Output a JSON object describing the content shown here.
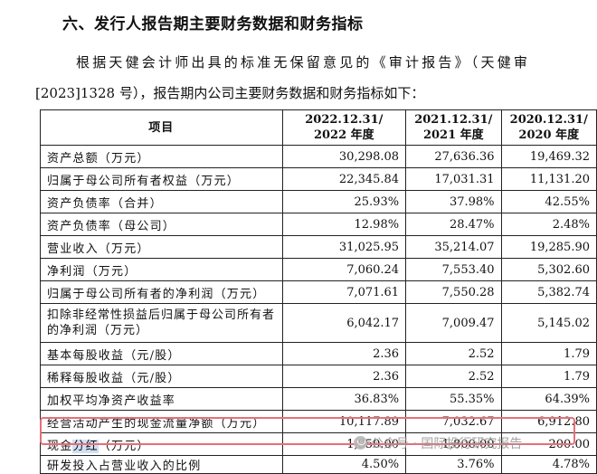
{
  "section_title": "六、发行人报告期主要财务数据和财务指标",
  "intro_line1": "根据天健会计师出具的标准无保留意见的《审计报告》（天健审",
  "intro_line2": "[2023]1328 号），报告期内公司主要财务数据和财务指标如下：",
  "table": {
    "headers": [
      {
        "line1": "项目",
        "line2": ""
      },
      {
        "line1": "2022.12.31/",
        "line2": "2022 年度"
      },
      {
        "line1": "2021.12.31/",
        "line2": "2021 年度"
      },
      {
        "line1": "2020.12.31/",
        "line2": "2020 年度"
      }
    ],
    "rows": [
      {
        "label": "资产总额（万元）",
        "values": [
          "30,298.08",
          "27,636.36",
          "19,469.32"
        ]
      },
      {
        "label": "归属于母公司所有者权益（万元）",
        "values": [
          "22,345.84",
          "17,031.31",
          "11,131.20"
        ]
      },
      {
        "label": "资产负债率（合并）",
        "values": [
          "25.93%",
          "37.98%",
          "42.55%"
        ]
      },
      {
        "label": "资产负债率（母公司）",
        "values": [
          "12.98%",
          "28.47%",
          "2.48%"
        ]
      },
      {
        "label": "营业收入（万元）",
        "values": [
          "31,025.95",
          "35,214.07",
          "19,285.90"
        ]
      },
      {
        "label": "净利润（万元）",
        "values": [
          "7,060.24",
          "7,553.40",
          "5,302.60"
        ]
      },
      {
        "label": "归属于母公司所有者的净利润（万元）",
        "values": [
          "7,071.61",
          "7,550.28",
          "5,382.74"
        ]
      },
      {
        "label": "扣除非经常性损益后归属于母公司所有者的净利润（万元）",
        "values": [
          "6,042.17",
          "7,009.47",
          "5,145.02"
        ]
      },
      {
        "label": "基本每股收益（元/股）",
        "values": [
          "2.36",
          "2.52",
          "1.79"
        ]
      },
      {
        "label": "稀释每股收益（元/股）",
        "values": [
          "2.36",
          "2.52",
          "1.79"
        ]
      },
      {
        "label": "加权平均净资产收益率",
        "values": [
          "36.83%",
          "55.35%",
          "64.39%"
        ]
      },
      {
        "label": "经营活动产生的现金流量净额（万元）",
        "values": [
          "10,117.89",
          "7,032.67",
          "6,912.80"
        ]
      },
      {
        "label_parts": [
          "现金",
          "分红",
          "（万元）"
        ],
        "values": [
          "1,950.00",
          "1,800.00",
          "200.00"
        ]
      },
      {
        "label": "研发投入占营业收入的比例",
        "values": [
          "4.50%",
          "3.76%",
          "4.78%"
        ]
      }
    ]
  },
  "colors": {
    "highlight_box": "#e5707a",
    "text_selection": "#cfe0f4"
  },
  "watermark": {
    "text": "公众号 · 国际投行研究报告",
    "icon": "wechat-icon"
  }
}
